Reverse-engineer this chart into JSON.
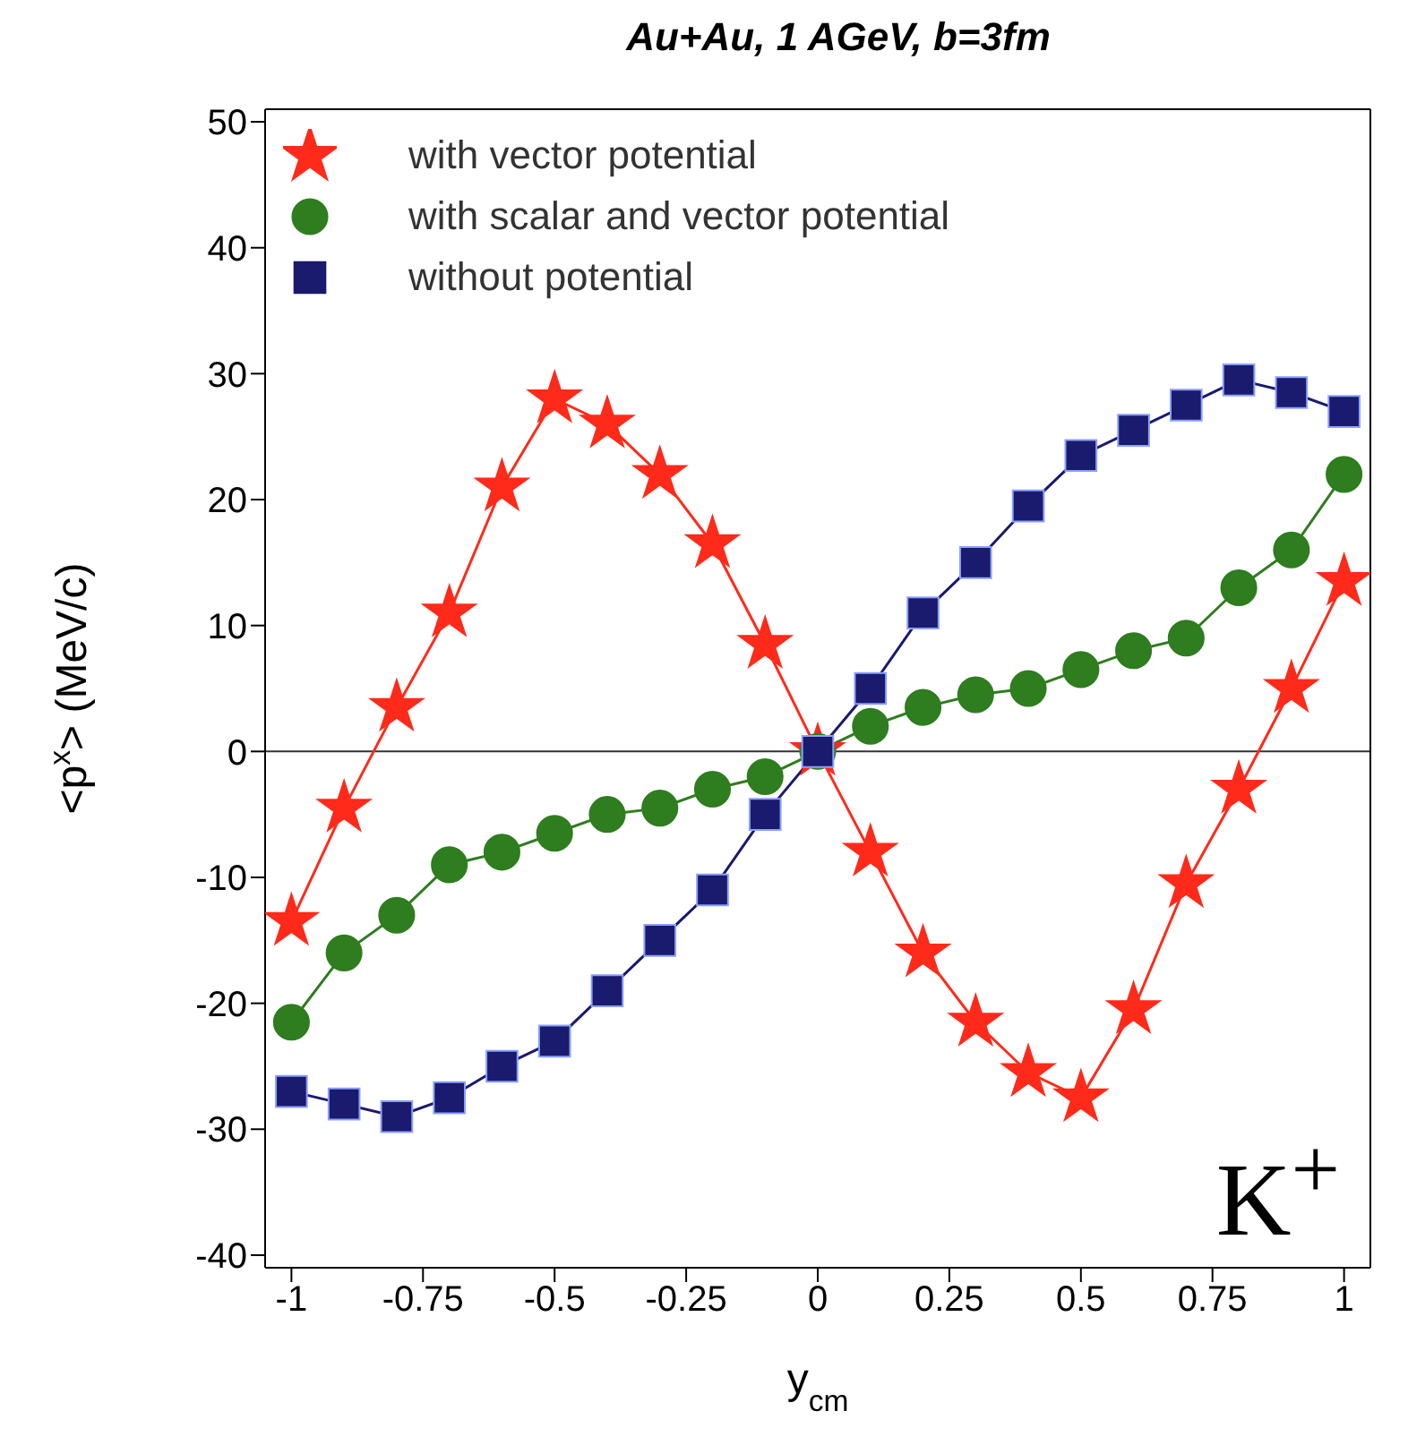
{
  "chart_data": {
    "type": "line",
    "title": "Au+Au, 1 AGeV, b=3fm",
    "xlabel": "y$_{cm}$",
    "ylabel": "<p$^{x}$> (MeV/c)",
    "x": [
      -1,
      -0.9,
      -0.8,
      -0.7,
      -0.6,
      -0.5,
      -0.4,
      -0.3,
      -0.2,
      -0.1,
      0,
      0.1,
      0.2,
      0.3,
      0.4,
      0.5,
      0.6,
      0.7,
      0.8,
      0.9,
      1
    ],
    "series": [
      {
        "name": "with vector potential",
        "color": "#ff2a1a",
        "marker": "star",
        "values": [
          -13.5,
          -4.5,
          3.5,
          11,
          21,
          28,
          26,
          22,
          16.5,
          8.5,
          0,
          -8,
          -16,
          -21.5,
          -25.5,
          -27.5,
          -20.5,
          -10.5,
          -3,
          5,
          13.5
        ]
      },
      {
        "name": "with scalar and vector potential",
        "color": "#2e7d1e",
        "marker": "circle",
        "values": [
          -21.5,
          -16,
          -13,
          -9,
          -8,
          -6.5,
          -5,
          -4.5,
          -3,
          -2,
          0,
          2,
          3.5,
          4.5,
          5,
          6.5,
          8,
          9,
          13,
          16,
          22
        ]
      },
      {
        "name": "without potential",
        "color": "#1a1a6e",
        "marker": "square",
        "values": [
          -27,
          -28,
          -29,
          -27.5,
          -25,
          -23,
          -19,
          -15,
          -11,
          -5,
          0,
          5,
          11,
          15,
          19.5,
          23.5,
          25.5,
          27.5,
          29.5,
          28.5,
          27
        ]
      }
    ],
    "xlim": [
      -1.05,
      1.05
    ],
    "xticks": [
      -1,
      -0.75,
      -0.5,
      -0.25,
      0,
      0.25,
      0.5,
      0.75,
      1
    ],
    "ylim": [
      -41,
      51
    ],
    "yticks": [
      -40,
      -30,
      -20,
      -10,
      0,
      10,
      20,
      30,
      40,
      50
    ],
    "ref_lines": [
      {
        "axis": "y",
        "value": 0,
        "color": "#333333"
      }
    ],
    "annotations": [
      "K$^{+}$"
    ],
    "legend": "top left",
    "grid": false
  }
}
